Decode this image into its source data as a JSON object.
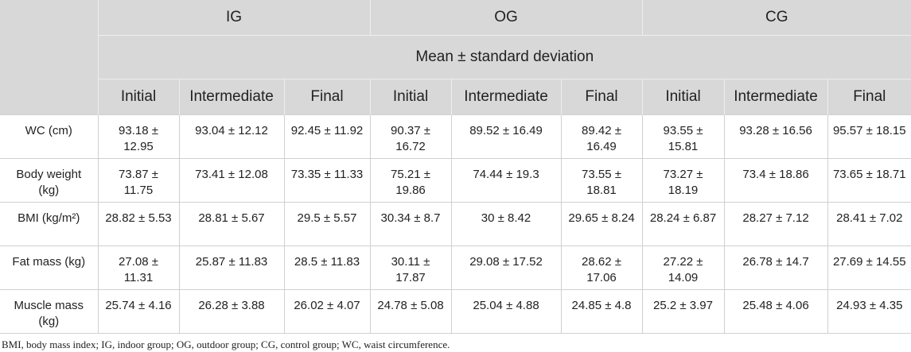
{
  "header": {
    "groups": [
      "IG",
      "OG",
      "CG"
    ],
    "subtitle": "Mean ± standard deviation",
    "columns": [
      "Initial",
      "Intermediate",
      "Final",
      "Initial",
      "Intermediate",
      "Final",
      "Initial",
      "Intermediate",
      "Final"
    ]
  },
  "rows": [
    {
      "label": "WC (cm)",
      "cells": [
        "93.18 ± 12.95",
        "93.04 ± 12.12",
        "92.45 ± 11.92",
        "90.37 ± 16.72",
        "89.52 ± 16.49",
        "89.42 ± 16.49",
        "93.55 ± 15.81",
        "93.28 ± 16.56",
        "95.57 ± 18.15"
      ]
    },
    {
      "label": "Body weight (kg)",
      "cells": [
        "73.87 ± 11.75",
        "73.41 ± 12.08",
        "73.35 ± 11.33",
        "75.21 ± 19.86",
        "74.44 ± 19.3",
        "73.55 ± 18.81",
        "73.27 ± 18.19",
        "73.4 ± 18.86",
        "73.65 ± 18.71"
      ]
    },
    {
      "label": "BMI (kg/m²)",
      "cells": [
        "28.82 ± 5.53",
        "28.81 ± 5.67",
        "29.5 ± 5.57",
        "30.34 ± 8.7",
        "30 ± 8.42",
        "29.65 ± 8.24",
        "28.24 ± 6.87",
        "28.27 ± 7.12",
        "28.41 ± 7.02"
      ]
    },
    {
      "label": "Fat mass (kg)",
      "cells": [
        "27.08 ± 11.31",
        "25.87 ± 11.83",
        "28.5 ± 11.83",
        "30.11 ± 17.87",
        "29.08 ± 17.52",
        "28.62 ± 17.06",
        "27.22 ± 14.09",
        "26.78 ± 14.7",
        "27.69 ± 14.55"
      ]
    },
    {
      "label": "Muscle mass (kg)",
      "cells": [
        "25.74 ± 4.16",
        "26.28 ± 3.88",
        "26.02 ± 4.07",
        "24.78 ± 5.08",
        "25.04 ± 4.88",
        "24.85 ± 4.8",
        "25.2 ± 3.97",
        "25.48 ± 4.06",
        "24.93 ± 4.35"
      ]
    }
  ],
  "footnote": "BMI, body mass index; IG, indoor group; OG, outdoor group; CG, control group; WC, waist circumference."
}
